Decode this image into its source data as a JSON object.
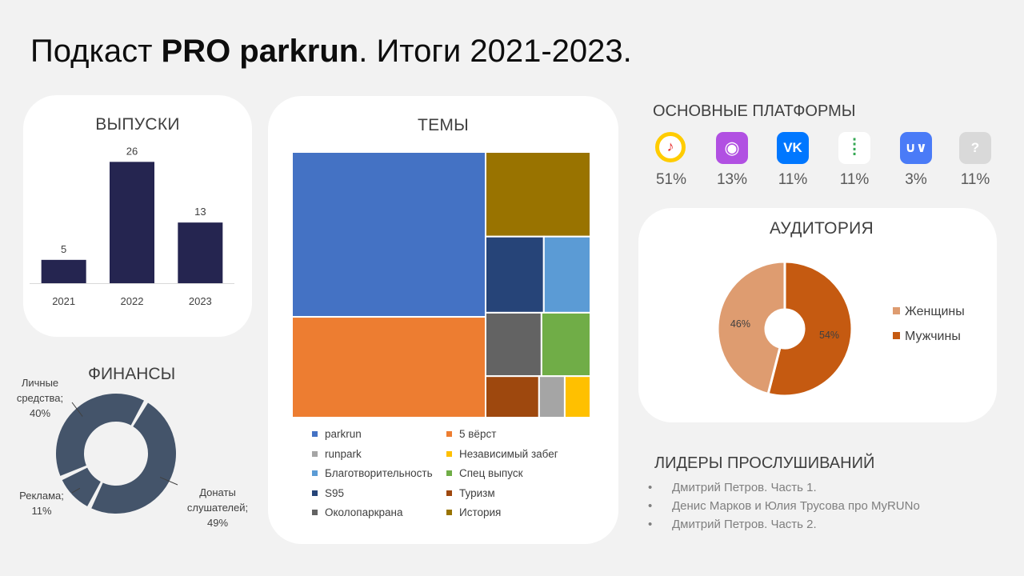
{
  "title": {
    "prefix": "Подкаст ",
    "bold": "PRO parkrun",
    "suffix": ". Итоги 2021-2023."
  },
  "releases": {
    "heading": "ВЫПУСКИ"
  },
  "topics": {
    "heading": "ТЕМЫ"
  },
  "finance": {
    "heading": "ФИНАНСЫ"
  },
  "platforms": {
    "heading": "ОСНОВНЫЕ ПЛАТФОРМЫ",
    "items": [
      {
        "icon": "yandex-music-icon",
        "glyph": "♪",
        "pct": "51%",
        "color": "#ffcc00"
      },
      {
        "icon": "apple-podcasts-icon",
        "glyph": "◉",
        "pct": "13%",
        "color": "#b150e2"
      },
      {
        "icon": "vk-icon",
        "glyph": "VK",
        "pct": "11%",
        "color": "#0077ff"
      },
      {
        "icon": "google-podcasts-icon",
        "glyph": "⁞",
        "pct": "11%",
        "color": "#ffffff"
      },
      {
        "icon": "castbox-icon",
        "glyph": "∪∨",
        "pct": "3%",
        "color": "#4a7bf7"
      },
      {
        "icon": "unknown-platform-icon",
        "glyph": "?",
        "pct": "11%",
        "color": "#d9d9d9"
      }
    ]
  },
  "audience": {
    "heading": "АУДИТОРИЯ"
  },
  "leaders": {
    "heading": "ЛИДЕРЫ ПРОСЛУШИВАНИЙ",
    "bullet": "•",
    "items": [
      "Дмитрий Петров. Часть 1.",
      "Денис Марков и Юлия Трусова про MyRUNo",
      "Дмитрий Петров. Часть 2."
    ]
  },
  "chart_data": [
    {
      "type": "bar",
      "title": "ВЫПУСКИ",
      "categories": [
        "2021",
        "2022",
        "2023"
      ],
      "values": [
        5,
        26,
        13
      ],
      "ylim": [
        0,
        30
      ],
      "color": "#252550",
      "grid": false
    },
    {
      "type": "treemap",
      "title": "ТЕМЫ",
      "items": [
        {
          "name": "parkrun",
          "value": 36,
          "color": "#4472c4"
        },
        {
          "name": "5 вёрст",
          "value": 22,
          "color": "#ed7d31"
        },
        {
          "name": "История",
          "value": 10,
          "color": "#997300"
        },
        {
          "name": "S95",
          "value": 5,
          "color": "#264478"
        },
        {
          "name": "Благотворительность",
          "value": 4,
          "color": "#5b9bd5"
        },
        {
          "name": "Спец выпуск",
          "value": 3.5,
          "color": "#70ad47"
        },
        {
          "name": "Туризм",
          "value": 2.5,
          "color": "#9e480e"
        },
        {
          "name": "Околопаркрана",
          "value": 4,
          "color": "#636363"
        },
        {
          "name": "runpark",
          "value": 1.2,
          "color": "#a5a5a5"
        },
        {
          "name": "Независимый забег",
          "value": 1.2,
          "color": "#ffc000"
        }
      ],
      "legend": [
        {
          "name": "parkrun",
          "color": "#4472c4"
        },
        {
          "name": "5 вёрст",
          "color": "#ed7d31"
        },
        {
          "name": "runpark",
          "color": "#a5a5a5"
        },
        {
          "name": "Независимый забег",
          "color": "#ffc000"
        },
        {
          "name": "Благотворительность",
          "color": "#5b9bd5"
        },
        {
          "name": "Спец выпуск",
          "color": "#70ad47"
        },
        {
          "name": "S95",
          "color": "#264478"
        },
        {
          "name": "Туризм",
          "color": "#9e480e"
        },
        {
          "name": "Околопаркрана",
          "color": "#636363"
        },
        {
          "name": "История",
          "color": "#997300"
        }
      ],
      "legend_position": "bottom"
    },
    {
      "type": "pie",
      "title": "ФИНАНСЫ",
      "donut": true,
      "slices": [
        {
          "name": "Донаты слушателей",
          "value": 49,
          "label": [
            "Донаты",
            "слушателей;",
            "49%"
          ]
        },
        {
          "name": "Реклама",
          "value": 11,
          "label": [
            "Реклама;",
            "11%"
          ]
        },
        {
          "name": "Личные средства",
          "value": 40,
          "label": [
            "Личные",
            "средства;",
            "40%"
          ]
        }
      ],
      "color": "#44546a"
    },
    {
      "type": "pie",
      "title": "АУДИТОРИЯ",
      "donut": true,
      "slices": [
        {
          "name": "Мужчины",
          "value": 54,
          "label": "54%",
          "color": "#c55a11"
        },
        {
          "name": "Женщины",
          "value": 46,
          "label": "46%",
          "color": "#de9c70"
        }
      ],
      "legend": [
        {
          "name": "Женщины",
          "color": "#de9c70"
        },
        {
          "name": "Мужчины",
          "color": "#c55a11"
        }
      ],
      "legend_position": "right"
    }
  ]
}
